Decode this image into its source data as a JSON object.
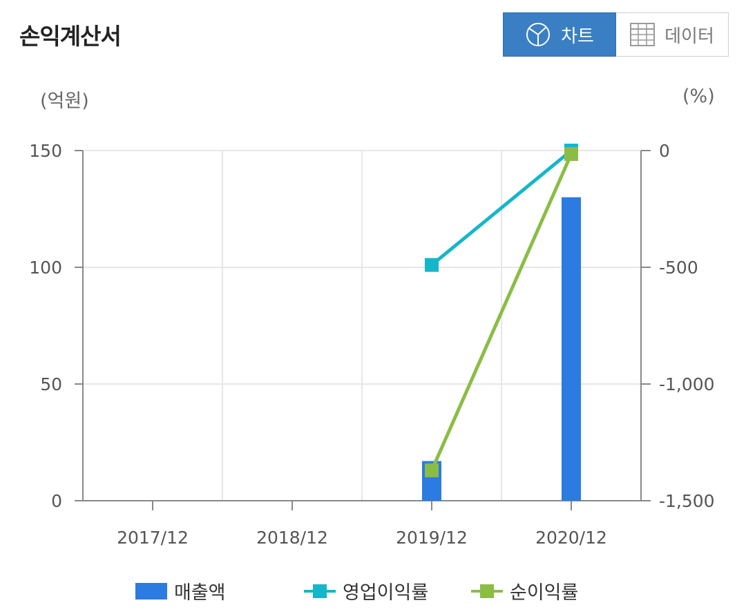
{
  "header": {
    "title": "손익계산서",
    "chart_button_label": "차트",
    "data_button_label": "데이터",
    "chart_icon": "pie-chart-icon",
    "data_icon": "table-grid-icon"
  },
  "colors": {
    "bar": "#2b7be0",
    "operating_margin": "#13b7cb",
    "net_margin": "#8bbd45",
    "active_button": "#3a7fc4"
  },
  "chart_data": {
    "type": "bar",
    "categories": [
      "2017/12",
      "2018/12",
      "2019/12",
      "2020/12"
    ],
    "left_axis": {
      "unit": "(억원)",
      "ylim": [
        0,
        150
      ],
      "ticks": [
        "150",
        "100",
        "50",
        "0"
      ],
      "tick_values": [
        150,
        100,
        50,
        0
      ]
    },
    "right_axis": {
      "unit": "(%)",
      "ylim": [
        -1500,
        0
      ],
      "ticks": [
        "0",
        "-500",
        "-1,000",
        "-1,500"
      ],
      "tick_values": [
        0,
        -500,
        -1000,
        -1500
      ]
    },
    "series": [
      {
        "name": "매출액",
        "type": "bar",
        "axis": "left",
        "values": [
          null,
          null,
          17,
          130
        ]
      },
      {
        "name": "영업이익률",
        "type": "line",
        "axis": "right",
        "values": [
          null,
          null,
          -490,
          0
        ]
      },
      {
        "name": "순이익률",
        "type": "line",
        "axis": "right",
        "values": [
          null,
          null,
          -1370,
          -15
        ]
      }
    ],
    "grid": true,
    "legend_position": "bottom"
  }
}
